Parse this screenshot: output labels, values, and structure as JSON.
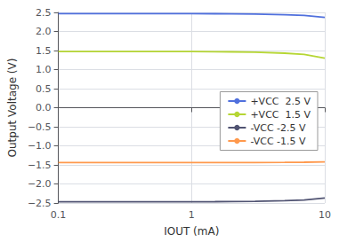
{
  "chart_data": {
    "type": "line",
    "xlabel": "IOUT (mA)",
    "ylabel": "Output Voltage (V)",
    "log": "x",
    "grid": true,
    "legend": "right",
    "xlim": [
      0.1,
      10
    ],
    "ylim": [
      -2.5,
      2.5
    ],
    "xticks": [
      0.1,
      1,
      10
    ],
    "yticks": [
      {
        "value": -2.5,
        "label": "−2.5"
      },
      {
        "value": -2.0,
        "label": "−2.0"
      },
      {
        "value": -1.5,
        "label": "−1.5"
      },
      {
        "value": -1.0,
        "label": "−1.0"
      },
      {
        "value": -0.5,
        "label": "−0.5"
      },
      {
        "value": 0.0,
        "label": "0.0"
      },
      {
        "value": 0.5,
        "label": "0.5"
      },
      {
        "value": 1.0,
        "label": "1.0"
      },
      {
        "value": 1.5,
        "label": "1.5"
      },
      {
        "value": 2.0,
        "label": "2.0"
      },
      {
        "value": 2.5,
        "label": "2.5"
      }
    ],
    "x": [
      0.1,
      0.15,
      0.2,
      0.3,
      0.5,
      0.7,
      1.0,
      1.5,
      2.0,
      3.0,
      5.0,
      7.0,
      10.0
    ],
    "series": [
      {
        "name": "+VCC  2.5 V",
        "values": [
          2.47,
          2.47,
          2.47,
          2.47,
          2.47,
          2.47,
          2.47,
          2.465,
          2.46,
          2.455,
          2.44,
          2.42,
          2.37
        ]
      },
      {
        "name": "+VCC  1.5 V",
        "values": [
          1.475,
          1.475,
          1.475,
          1.475,
          1.475,
          1.475,
          1.475,
          1.47,
          1.465,
          1.455,
          1.43,
          1.4,
          1.3
        ]
      },
      {
        "name": "-VCC -2.5 V",
        "values": [
          -2.47,
          -2.47,
          -2.47,
          -2.47,
          -2.47,
          -2.47,
          -2.47,
          -2.465,
          -2.46,
          -2.455,
          -2.44,
          -2.42,
          -2.37
        ]
      },
      {
        "name": "-VCC -1.5 V",
        "values": [
          -1.44,
          -1.44,
          -1.44,
          -1.44,
          -1.44,
          -1.44,
          -1.44,
          -1.44,
          -1.44,
          -1.44,
          -1.435,
          -1.43,
          -1.42
        ]
      }
    ]
  }
}
